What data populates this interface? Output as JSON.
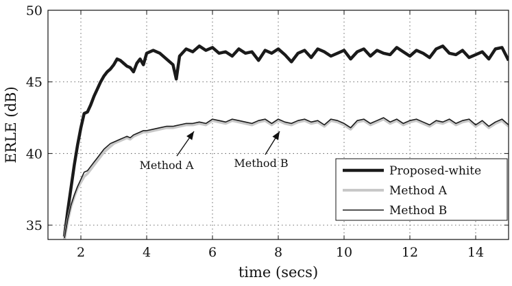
{
  "chart_data": {
    "type": "line",
    "title": "",
    "xlabel": "time (secs)",
    "ylabel": "ERLE (dB)",
    "xlim": [
      1,
      15
    ],
    "ylim": [
      34,
      50
    ],
    "xticks": [
      2,
      4,
      6,
      8,
      10,
      12,
      14
    ],
    "yticks": [
      35,
      40,
      45,
      50
    ],
    "grid": true,
    "grid_style": "dotted",
    "legend_position": "bottom-right",
    "series": [
      {
        "name": "Proposed-white",
        "color": "#1a1a1a",
        "x": [
          1.5,
          1.6,
          1.7,
          1.8,
          1.9,
          2.0,
          2.1,
          2.2,
          2.3,
          2.4,
          2.5,
          2.6,
          2.7,
          2.8,
          2.9,
          3.0,
          3.1,
          3.2,
          3.3,
          3.4,
          3.5,
          3.6,
          3.7,
          3.8,
          3.9,
          4.0,
          4.2,
          4.4,
          4.6,
          4.8,
          4.9,
          5.0,
          5.2,
          5.4,
          5.6,
          5.8,
          6.0,
          6.2,
          6.4,
          6.6,
          6.8,
          7.0,
          7.2,
          7.4,
          7.6,
          7.8,
          8.0,
          8.2,
          8.4,
          8.6,
          8.8,
          9.0,
          9.2,
          9.4,
          9.6,
          9.8,
          10.0,
          10.2,
          10.4,
          10.6,
          10.8,
          11.0,
          11.2,
          11.4,
          11.6,
          11.8,
          12.0,
          12.2,
          12.4,
          12.6,
          12.8,
          13.0,
          13.2,
          13.4,
          13.6,
          13.8,
          14.0,
          14.2,
          14.4,
          14.6,
          14.8,
          15.0
        ],
        "y": [
          34.2,
          36.0,
          37.6,
          39.2,
          40.6,
          41.8,
          42.8,
          42.9,
          43.4,
          44.0,
          44.5,
          45.0,
          45.4,
          45.7,
          45.9,
          46.2,
          46.6,
          46.5,
          46.3,
          46.1,
          46.0,
          45.7,
          46.3,
          46.6,
          46.2,
          47.0,
          47.2,
          47.0,
          46.6,
          46.2,
          45.2,
          46.8,
          47.3,
          47.1,
          47.5,
          47.2,
          47.4,
          47.0,
          47.1,
          46.8,
          47.3,
          47.0,
          47.1,
          46.5,
          47.2,
          47.0,
          47.3,
          46.9,
          46.4,
          47.0,
          47.2,
          46.7,
          47.3,
          47.1,
          46.8,
          47.0,
          47.2,
          46.6,
          47.1,
          47.3,
          46.8,
          47.2,
          47.0,
          46.9,
          47.4,
          47.1,
          46.8,
          47.2,
          47.0,
          46.7,
          47.3,
          47.5,
          47.0,
          46.9,
          47.2,
          46.7,
          46.9,
          47.1,
          46.6,
          47.3,
          47.4,
          46.5
        ]
      },
      {
        "name": "Method A",
        "color": "#c8c8c8",
        "x": [
          1.5,
          1.6,
          1.7,
          1.8,
          1.9,
          2.0,
          2.1,
          2.2,
          2.3,
          2.4,
          2.5,
          2.6,
          2.7,
          2.8,
          2.9,
          3.0,
          3.1,
          3.2,
          3.3,
          3.4,
          3.5,
          3.6,
          3.7,
          3.8,
          3.9,
          4.0,
          4.2,
          4.4,
          4.6,
          4.8,
          5.0,
          5.2,
          5.4,
          5.6,
          5.8,
          6.0,
          6.2,
          6.4,
          6.6,
          6.8,
          7.0,
          7.2,
          7.4,
          7.6,
          7.8,
          8.0,
          8.2,
          8.4,
          8.6,
          8.8,
          9.0,
          9.2,
          9.4,
          9.6,
          9.8,
          10.0,
          10.2,
          10.4,
          10.6,
          10.8,
          11.0,
          11.2,
          11.4,
          11.6,
          11.8,
          12.0,
          12.2,
          12.4,
          12.6,
          12.8,
          13.0,
          13.2,
          13.4,
          13.6,
          13.8,
          14.0,
          14.2,
          14.4,
          14.6,
          14.8,
          15.0
        ],
        "y": [
          34.0,
          35.3,
          36.3,
          37.0,
          37.6,
          38.0,
          38.4,
          38.6,
          38.9,
          39.2,
          39.5,
          39.8,
          40.1,
          40.3,
          40.5,
          40.7,
          40.8,
          40.9,
          41.0,
          41.1,
          41.0,
          41.2,
          41.3,
          41.4,
          41.5,
          41.5,
          41.6,
          41.7,
          41.8,
          41.8,
          41.9,
          42.0,
          42.0,
          42.1,
          42.0,
          42.3,
          42.2,
          42.1,
          42.3,
          42.2,
          42.1,
          42.0,
          42.2,
          42.3,
          42.0,
          42.3,
          42.1,
          42.0,
          42.2,
          42.3,
          42.1,
          42.2,
          41.9,
          42.3,
          42.2,
          42.0,
          41.7,
          42.2,
          42.3,
          42.0,
          42.2,
          42.4,
          42.1,
          42.3,
          42.0,
          42.2,
          42.3,
          42.1,
          41.9,
          42.2,
          42.1,
          42.3,
          42.0,
          42.2,
          42.3,
          41.9,
          42.2,
          41.8,
          42.1,
          42.3,
          41.9
        ]
      },
      {
        "name": "Method B",
        "color": "#1a1a1a",
        "x": [
          1.5,
          1.6,
          1.7,
          1.8,
          1.9,
          2.0,
          2.1,
          2.2,
          2.3,
          2.4,
          2.5,
          2.6,
          2.7,
          2.8,
          2.9,
          3.0,
          3.1,
          3.2,
          3.3,
          3.4,
          3.5,
          3.6,
          3.7,
          3.8,
          3.9,
          4.0,
          4.2,
          4.4,
          4.6,
          4.8,
          5.0,
          5.2,
          5.4,
          5.6,
          5.8,
          6.0,
          6.2,
          6.4,
          6.6,
          6.8,
          7.0,
          7.2,
          7.4,
          7.6,
          7.8,
          8.0,
          8.2,
          8.4,
          8.6,
          8.8,
          9.0,
          9.2,
          9.4,
          9.6,
          9.8,
          10.0,
          10.2,
          10.4,
          10.6,
          10.8,
          11.0,
          11.2,
          11.4,
          11.6,
          11.8,
          12.0,
          12.2,
          12.4,
          12.6,
          12.8,
          13.0,
          13.2,
          13.4,
          13.6,
          13.8,
          14.0,
          14.2,
          14.4,
          14.6,
          14.8,
          15.0
        ],
        "y": [
          34.1,
          35.4,
          36.4,
          37.1,
          37.7,
          38.2,
          38.7,
          38.8,
          39.1,
          39.4,
          39.7,
          40.0,
          40.3,
          40.5,
          40.7,
          40.8,
          40.9,
          41.0,
          41.1,
          41.2,
          41.1,
          41.3,
          41.4,
          41.5,
          41.6,
          41.6,
          41.7,
          41.8,
          41.9,
          41.9,
          42.0,
          42.1,
          42.1,
          42.2,
          42.1,
          42.4,
          42.3,
          42.2,
          42.4,
          42.3,
          42.2,
          42.1,
          42.3,
          42.4,
          42.1,
          42.4,
          42.2,
          42.1,
          42.3,
          42.4,
          42.2,
          42.3,
          42.0,
          42.4,
          42.3,
          42.1,
          41.8,
          42.3,
          42.4,
          42.1,
          42.3,
          42.5,
          42.2,
          42.4,
          42.1,
          42.3,
          42.4,
          42.2,
          42.0,
          42.3,
          42.2,
          42.4,
          42.1,
          42.3,
          42.4,
          42.0,
          42.3,
          41.9,
          42.2,
          42.4,
          42.0
        ]
      }
    ],
    "annotations": [
      {
        "text": "Method A",
        "x": 5.5,
        "y": 42.0
      },
      {
        "text": "Method B",
        "x": 8.0,
        "y": 42.3
      }
    ]
  }
}
